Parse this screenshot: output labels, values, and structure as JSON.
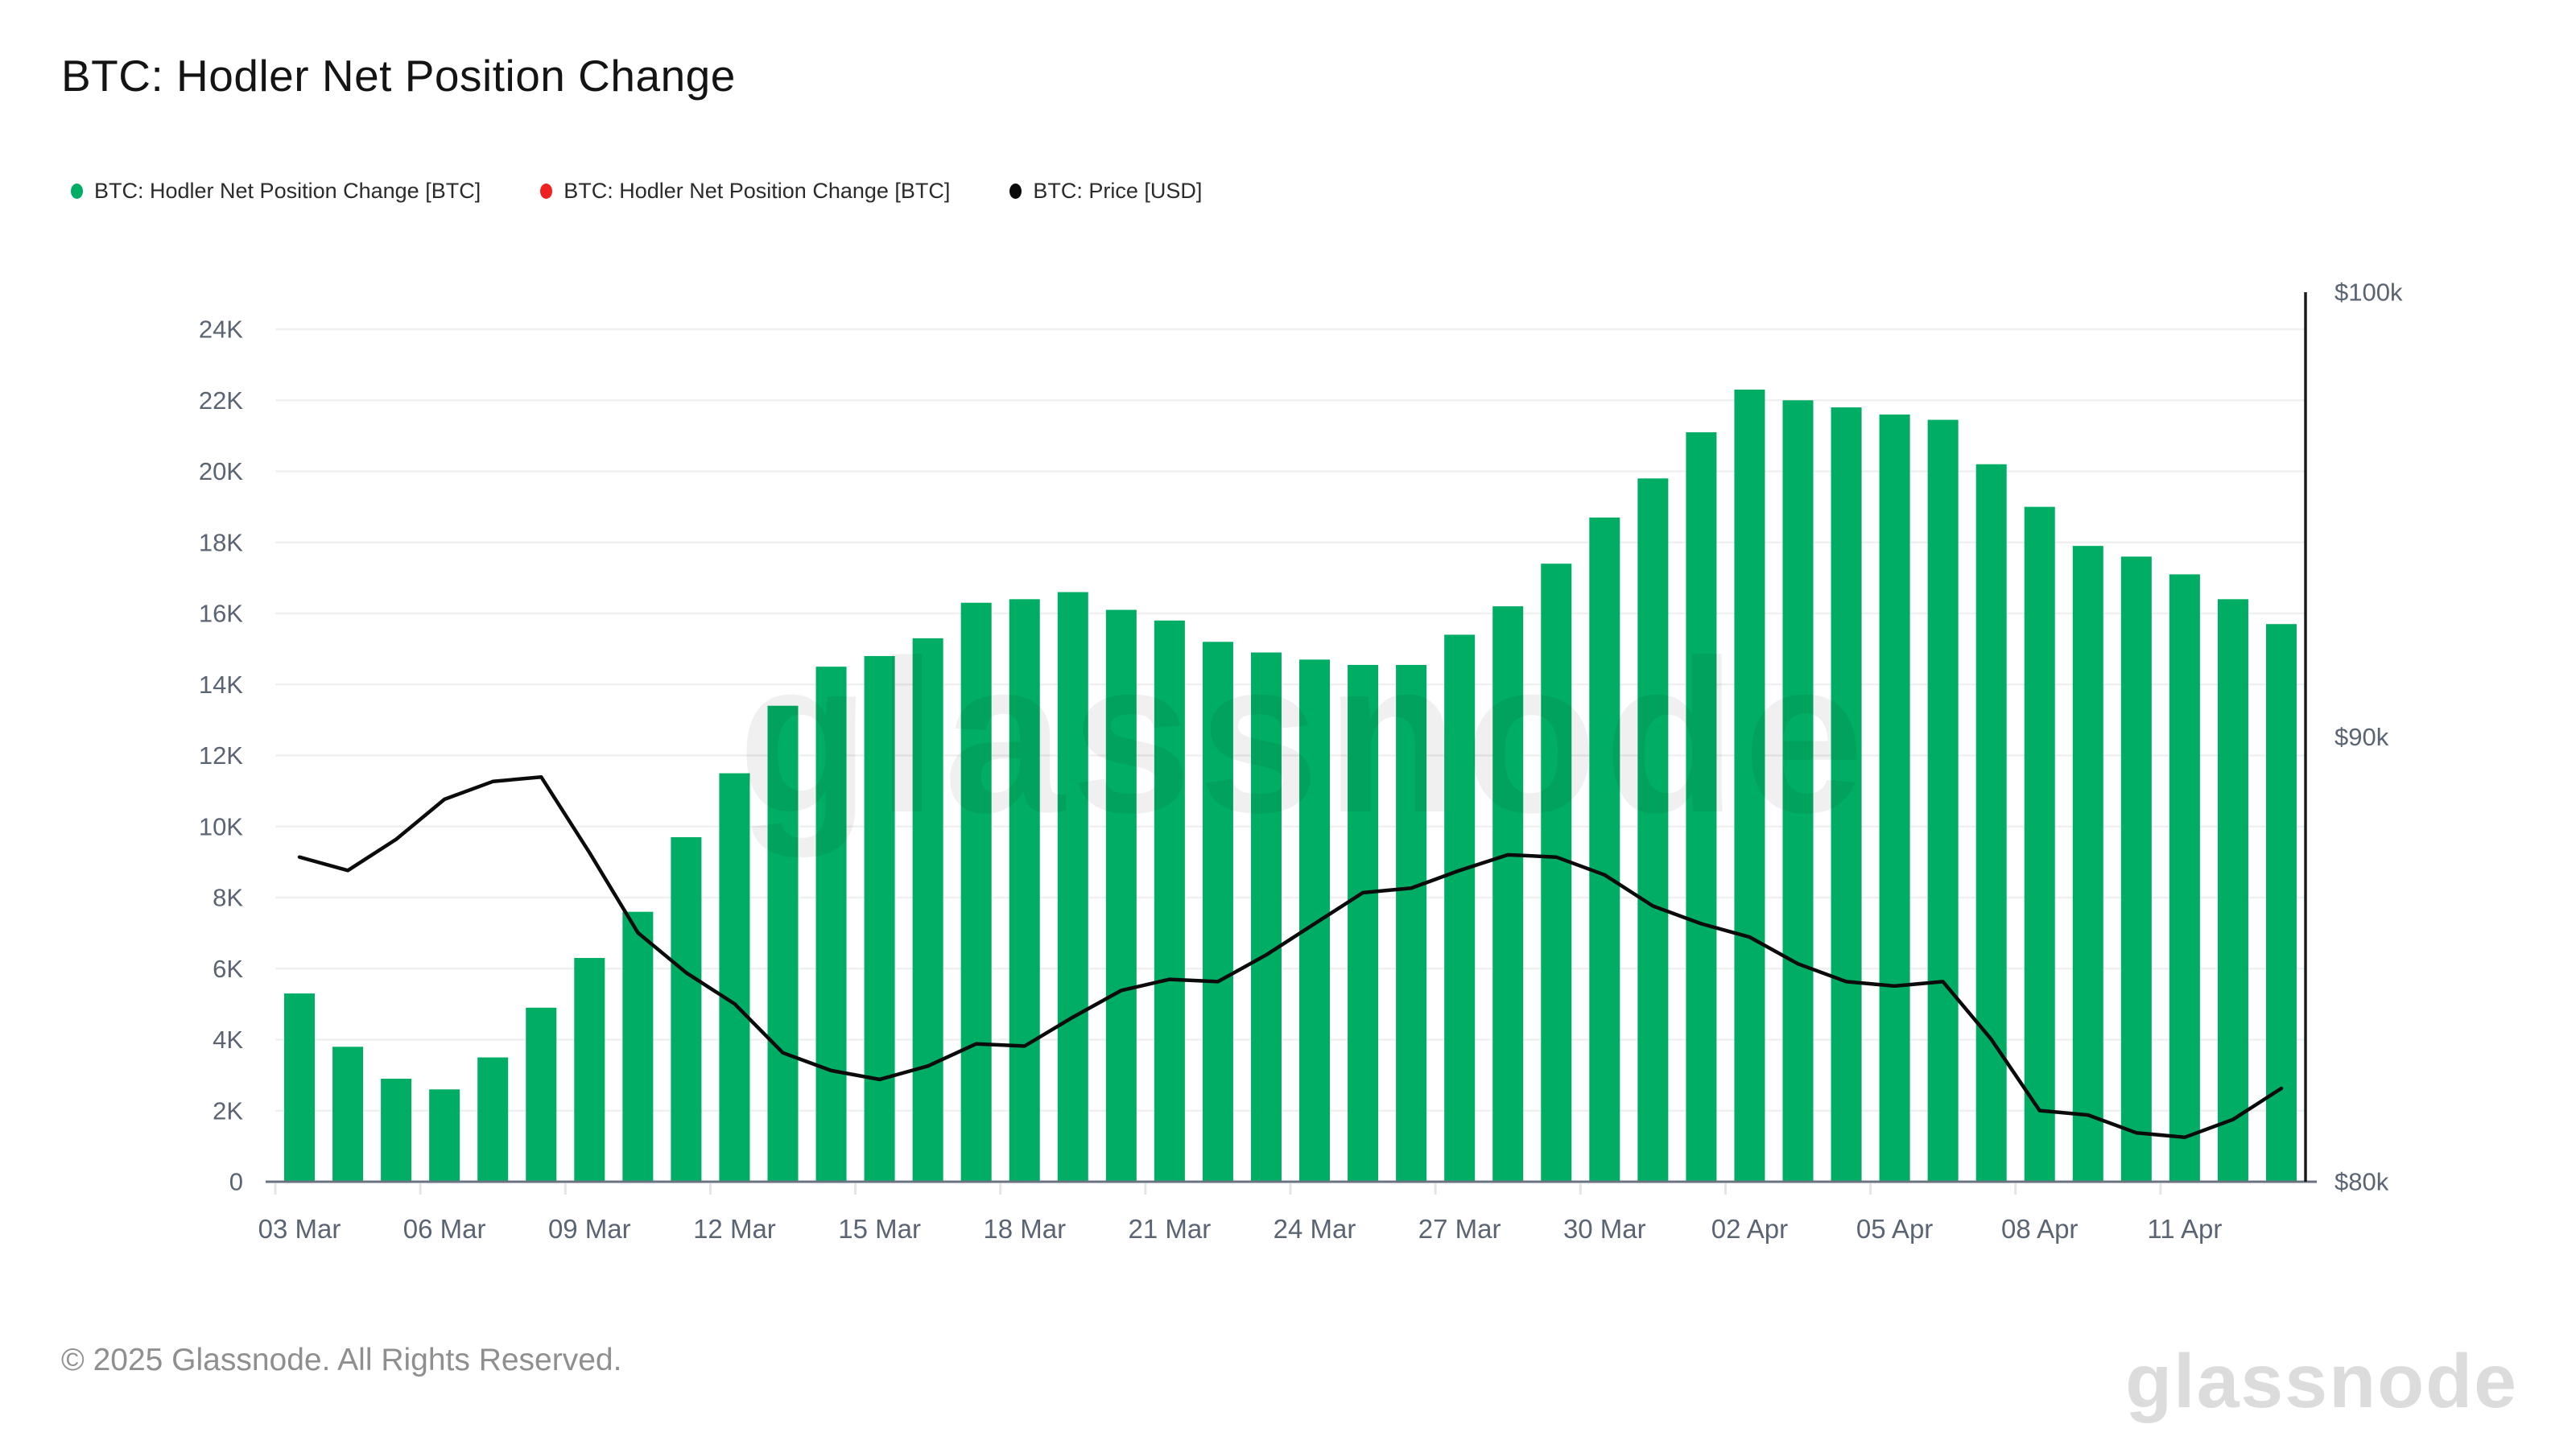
{
  "title": "BTC: Hodler Net Position Change",
  "legend": [
    {
      "label": "BTC: Hodler Net Position Change [BTC]",
      "color": "#00ad64"
    },
    {
      "label": "BTC: Hodler Net Position Change [BTC]",
      "color": "#ef2121"
    },
    {
      "label": "BTC: Price [USD]",
      "color": "#0b0b0b"
    }
  ],
  "watermark_text": "glassnode",
  "footer": {
    "copyright": "© 2025 Glassnode. All Rights Reserved.",
    "brand": "glassnode"
  },
  "colors": {
    "bar_green": "#00ad64",
    "legend_red": "#ef2121",
    "price_line": "#0b0b0b",
    "gridline": "#f0f0f0",
    "x_axis_line": "#6b7280",
    "right_axis_line": "#1a1a1a",
    "axis_text": "#5b6472",
    "tick_mark": "#e3e5e8",
    "watermark": "#000000"
  },
  "chart_data": {
    "type": "bar",
    "title": "BTC: Hodler Net Position Change",
    "categories": [
      "03 Mar",
      "04 Mar",
      "05 Mar",
      "06 Mar",
      "07 Mar",
      "08 Mar",
      "09 Mar",
      "10 Mar",
      "11 Mar",
      "12 Mar",
      "13 Mar",
      "14 Mar",
      "15 Mar",
      "16 Mar",
      "17 Mar",
      "18 Mar",
      "19 Mar",
      "20 Mar",
      "21 Mar",
      "22 Mar",
      "23 Mar",
      "24 Mar",
      "25 Mar",
      "26 Mar",
      "27 Mar",
      "28 Mar",
      "29 Mar",
      "30 Mar",
      "31 Mar",
      "01 Apr",
      "02 Apr",
      "03 Apr",
      "04 Apr",
      "05 Apr",
      "06 Apr",
      "07 Apr",
      "08 Apr",
      "09 Apr",
      "10 Apr",
      "11 Apr",
      "12 Apr",
      "13 Apr"
    ],
    "series": [
      {
        "name": "BTC: Hodler Net Position Change [BTC]",
        "type": "bar",
        "axis": "left",
        "unit": "BTC",
        "values": [
          5300,
          3800,
          2900,
          2600,
          3500,
          4900,
          6300,
          7600,
          9700,
          11500,
          13400,
          14500,
          14800,
          15300,
          16300,
          16400,
          16600,
          16100,
          15800,
          15200,
          14900,
          14700,
          14550,
          14550,
          15400,
          16200,
          17400,
          18700,
          19800,
          21100,
          22300,
          22000,
          21800,
          21600,
          21450,
          20200,
          19000,
          17900,
          17600,
          17100,
          16400,
          15700
        ]
      },
      {
        "name": "BTC: Price [USD]",
        "type": "line",
        "axis": "right",
        "unit": "USD",
        "values": [
          87300,
          87000,
          87700,
          88600,
          89000,
          89100,
          87400,
          85600,
          84700,
          84000,
          82900,
          82500,
          82300,
          82600,
          83100,
          83050,
          83700,
          84300,
          84550,
          84500,
          85100,
          85800,
          86500,
          86600,
          87000,
          87350,
          87300,
          86900,
          86200,
          85800,
          85500,
          84900,
          84500,
          84400,
          84500,
          83200,
          81600,
          81500,
          81100,
          81000,
          81400,
          82100
        ]
      }
    ],
    "left_axis": {
      "label": "",
      "min": 0,
      "max": 24000,
      "tick_step": 2000,
      "tick_labels": [
        "0",
        "2K",
        "4K",
        "6K",
        "8K",
        "10K",
        "12K",
        "14K",
        "16K",
        "18K",
        "20K",
        "22K",
        "24K"
      ]
    },
    "right_axis": {
      "label": "",
      "min": 80000,
      "max": 100000,
      "tick_labels": [
        "$80k",
        "$90k",
        "$100k"
      ]
    },
    "x_tick_labels": [
      "03 Mar",
      "06 Mar",
      "09 Mar",
      "12 Mar",
      "15 Mar",
      "18 Mar",
      "21 Mar",
      "24 Mar",
      "27 Mar",
      "30 Mar",
      "02 Apr",
      "05 Apr",
      "08 Apr",
      "11 Apr"
    ],
    "x_tick_every": 3,
    "grid": true,
    "legend_position": "top-left"
  }
}
